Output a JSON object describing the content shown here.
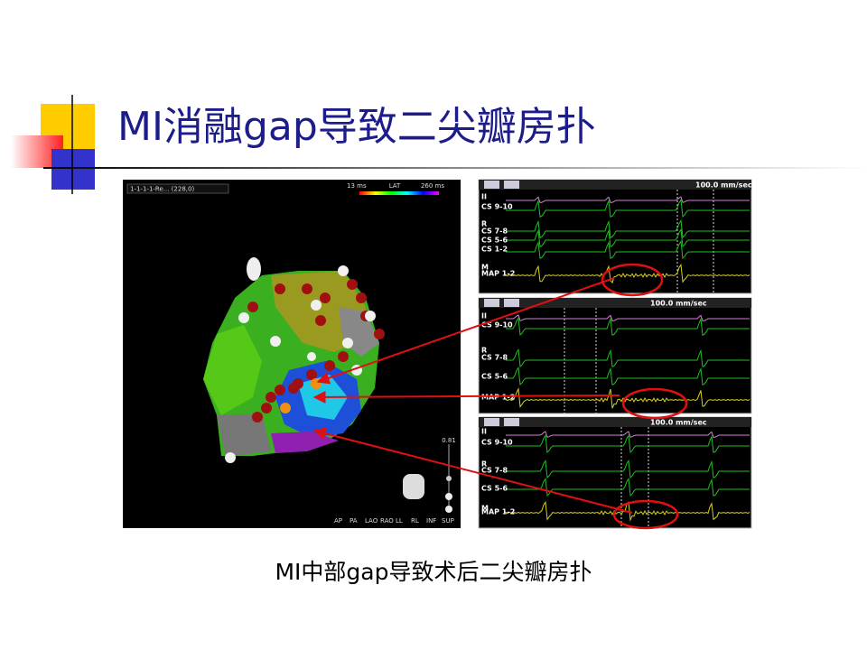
{
  "title": "MI消融gap导致二尖瓣房扑",
  "caption": "MI中部gap导致术后二尖瓣房扑",
  "map": {
    "dropdown": "1-1-1-1-Re... (228,0)",
    "scale_min": "13 ms",
    "scale_label": "LAT",
    "scale_max": "260 ms",
    "views": [
      "AP",
      "PA",
      "LAO",
      "RAO",
      "LL",
      "RL",
      "INF",
      "SUP"
    ],
    "slider_value": "0.81"
  },
  "panels": [
    {
      "speed": "100.0 mm/sec",
      "channels": [
        "II",
        "CS 9-10",
        "R",
        "CS 7-8",
        "CS 5-6",
        "CS 1-2",
        "M",
        "MAP 1-2"
      ]
    },
    {
      "speed": "100.0 mm/sec",
      "channels": [
        "II",
        "CS 9-10",
        "R",
        "CS 7-8",
        "CS 5-6",
        "MAP 1-2"
      ]
    },
    {
      "speed": "100.0 mm/sec",
      "channels": [
        "II",
        "CS 9-10",
        "R",
        "CS 7-8",
        "CS 5-6",
        "M",
        "MAP 1-2"
      ]
    }
  ]
}
